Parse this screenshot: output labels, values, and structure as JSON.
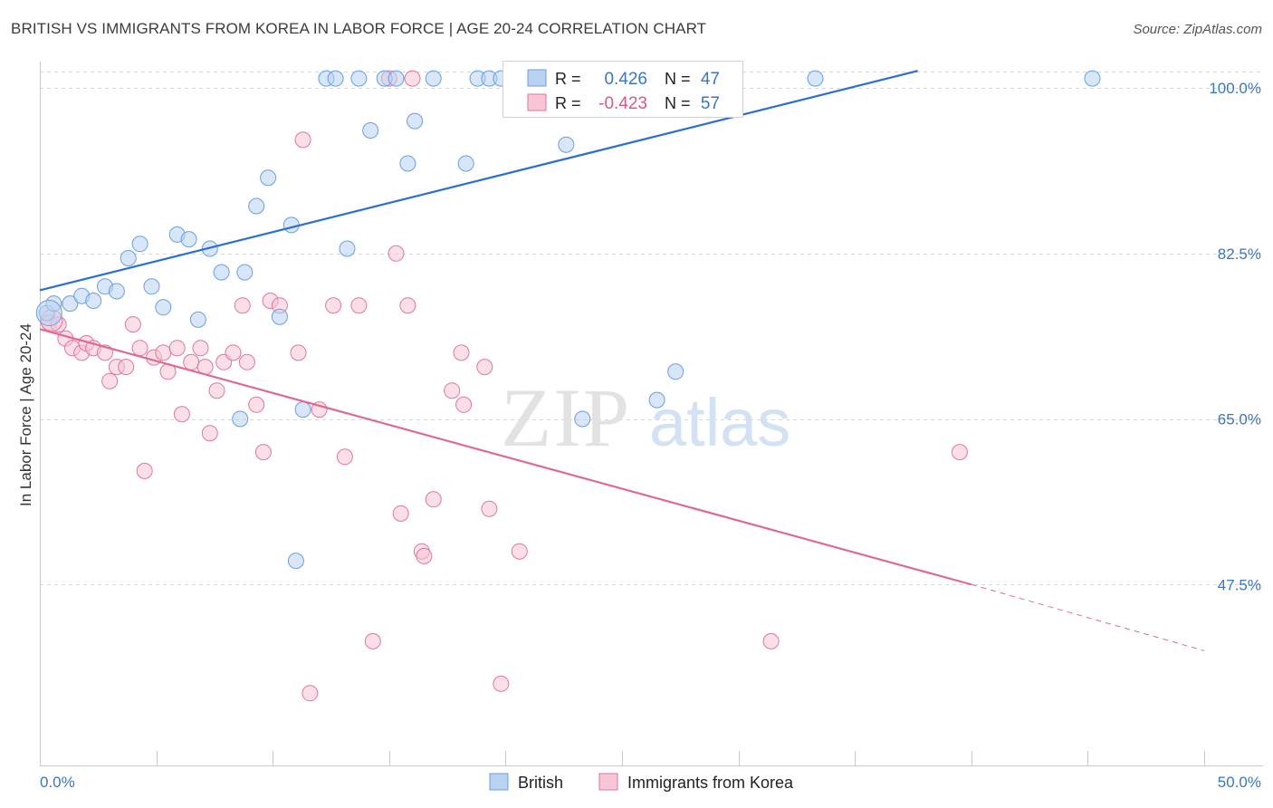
{
  "title": "BRITISH VS IMMIGRANTS FROM KOREA IN LABOR FORCE | AGE 20-24 CORRELATION CHART",
  "source": "Source: ZipAtlas.com",
  "watermark": {
    "zip": "ZIP",
    "atlas": "atlas"
  },
  "colors": {
    "british": "#6b9fde",
    "british_fill": "#b9d2f1",
    "korea": "#e0779c",
    "korea_fill": "#f7c5d6",
    "trend_british": "#2a6fcf",
    "trend_korea": "#de6a94",
    "grid": "#d8d8d8",
    "tick_label": "#3a75c4"
  },
  "stats_legend": {
    "rows": [
      {
        "r_label": "R =",
        "r_value": "0.426",
        "n_label": "N =",
        "n_value": "47"
      },
      {
        "r_label": "R =",
        "r_value": "-0.423",
        "n_label": "N =",
        "n_value": "57"
      }
    ]
  },
  "chart_data": {
    "type": "scatter",
    "title": "BRITISH VS IMMIGRANTS FROM KOREA IN LABOR FORCE | AGE 20-24 CORRELATION CHART",
    "xlabel": "",
    "ylabel": "In Labor Force | Age 20-24",
    "xlim": [
      0,
      50
    ],
    "ylim": [
      33,
      102
    ],
    "x_tick_labels": [
      "0.0%",
      "50.0%"
    ],
    "y_ticks": [
      47.5,
      65.0,
      82.5,
      100.0
    ],
    "y_tick_labels": [
      "47.5%",
      "65.0%",
      "82.5%",
      "100.0%"
    ],
    "grid": true,
    "legend_position": "bottom",
    "series": [
      {
        "name": "British",
        "r": 0.426,
        "n": 47,
        "trend": {
          "x": [
            0,
            37.7
          ],
          "y": [
            78.6,
            101.8
          ]
        },
        "points": [
          [
            0.3,
            76.2
          ],
          [
            0.6,
            77.2
          ],
          [
            1.3,
            77.2
          ],
          [
            1.8,
            78.0
          ],
          [
            2.3,
            77.5
          ],
          [
            2.8,
            79.0
          ],
          [
            3.3,
            78.5
          ],
          [
            3.8,
            82.0
          ],
          [
            4.3,
            83.5
          ],
          [
            4.8,
            79.0
          ],
          [
            5.3,
            76.8
          ],
          [
            5.9,
            84.5
          ],
          [
            6.4,
            84.0
          ],
          [
            6.8,
            75.5
          ],
          [
            7.3,
            83.0
          ],
          [
            7.8,
            80.5
          ],
          [
            8.8,
            80.5
          ],
          [
            8.6,
            65.0
          ],
          [
            9.3,
            87.5
          ],
          [
            9.8,
            90.5
          ],
          [
            10.3,
            75.8
          ],
          [
            10.8,
            85.5
          ],
          [
            11.3,
            66.0
          ],
          [
            11.0,
            50.0
          ],
          [
            12.3,
            101.0
          ],
          [
            12.7,
            101.0
          ],
          [
            13.2,
            83.0
          ],
          [
            13.7,
            101.0
          ],
          [
            14.2,
            95.5
          ],
          [
            14.8,
            101.0
          ],
          [
            15.3,
            101.0
          ],
          [
            15.8,
            92.0
          ],
          [
            16.1,
            96.5
          ],
          [
            16.9,
            101.0
          ],
          [
            18.3,
            92.0
          ],
          [
            18.8,
            101.0
          ],
          [
            19.3,
            101.0
          ],
          [
            19.8,
            101.0
          ],
          [
            22.0,
            101.0
          ],
          [
            22.6,
            94.0
          ],
          [
            23.8,
            101.0
          ],
          [
            26.5,
            67.0
          ],
          [
            27.3,
            70.0
          ],
          [
            28.3,
            101.0
          ],
          [
            33.3,
            101.0
          ],
          [
            45.2,
            101.0
          ],
          [
            23.3,
            65.0
          ]
        ]
      },
      {
        "name": "Immigrants from Korea",
        "r": -0.423,
        "n": 57,
        "trend": {
          "x": [
            0,
            40.0
          ],
          "y": [
            74.5,
            47.5
          ]
        },
        "trend_dashed": {
          "x": [
            40.0,
            50.0
          ],
          "y": [
            47.5,
            40.5
          ]
        },
        "points": [
          [
            0.4,
            75.2
          ],
          [
            0.8,
            75.0
          ],
          [
            1.1,
            73.5
          ],
          [
            1.4,
            72.5
          ],
          [
            1.8,
            72.0
          ],
          [
            2.0,
            73.0
          ],
          [
            2.3,
            72.5
          ],
          [
            2.8,
            72.0
          ],
          [
            3.0,
            69.0
          ],
          [
            3.3,
            70.5
          ],
          [
            3.7,
            70.5
          ],
          [
            4.0,
            75.0
          ],
          [
            4.3,
            72.5
          ],
          [
            4.5,
            59.5
          ],
          [
            4.9,
            71.5
          ],
          [
            5.3,
            72.0
          ],
          [
            5.5,
            70.0
          ],
          [
            5.9,
            72.5
          ],
          [
            6.1,
            65.5
          ],
          [
            6.5,
            71.0
          ],
          [
            6.9,
            72.5
          ],
          [
            7.1,
            70.5
          ],
          [
            7.3,
            63.5
          ],
          [
            7.6,
            68.0
          ],
          [
            7.9,
            71.0
          ],
          [
            8.3,
            72.0
          ],
          [
            8.7,
            77.0
          ],
          [
            8.9,
            71.0
          ],
          [
            9.3,
            66.5
          ],
          [
            9.6,
            61.5
          ],
          [
            9.9,
            77.5
          ],
          [
            10.3,
            77.0
          ],
          [
            11.1,
            72.0
          ],
          [
            11.3,
            94.5
          ],
          [
            11.6,
            36.0
          ],
          [
            12.0,
            66.0
          ],
          [
            12.6,
            77.0
          ],
          [
            13.1,
            61.0
          ],
          [
            13.7,
            77.0
          ],
          [
            14.3,
            41.5
          ],
          [
            15.0,
            101.0
          ],
          [
            15.3,
            82.5
          ],
          [
            15.5,
            55.0
          ],
          [
            15.8,
            77.0
          ],
          [
            16.4,
            51.0
          ],
          [
            16.5,
            50.5
          ],
          [
            16.9,
            56.5
          ],
          [
            17.7,
            68.0
          ],
          [
            18.1,
            72.0
          ],
          [
            18.2,
            66.5
          ],
          [
            19.1,
            70.5
          ],
          [
            19.3,
            55.5
          ],
          [
            19.8,
            37.0
          ],
          [
            20.6,
            51.0
          ],
          [
            31.4,
            41.5
          ],
          [
            39.5,
            61.5
          ],
          [
            16.0,
            101.0
          ]
        ]
      }
    ]
  }
}
